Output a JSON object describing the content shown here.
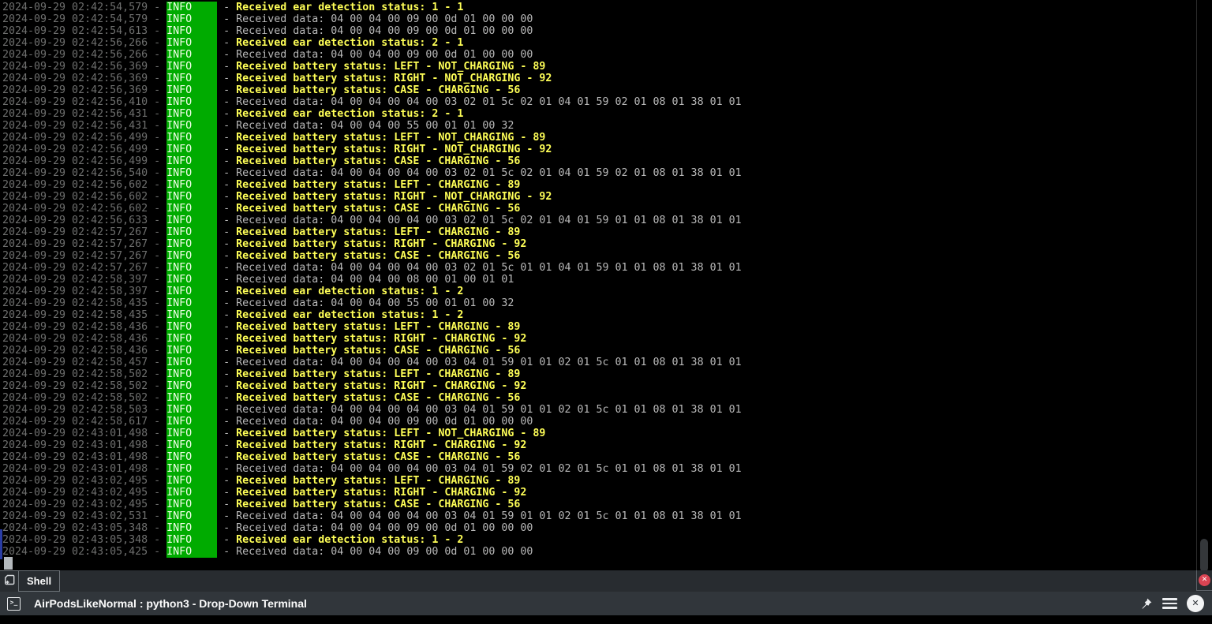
{
  "terminal": {
    "level_label": "INFO",
    "colors": {
      "badge_bg": "#00ab00",
      "badge_fg": "#f2ffe9",
      "timestamp": "#6e6f6e",
      "data_text": "#b9b9b9",
      "status_text": "#ffff57",
      "mark_bar": "#2a3da5",
      "cursor": "#b4b9bd",
      "background": "#000000"
    },
    "lines": [
      {
        "time": "2024-09-29 02:42:54,579",
        "level": "INFO",
        "kind": "status",
        "msg": "Received ear detection status: 1 - 1"
      },
      {
        "time": "2024-09-29 02:42:54,579",
        "level": "INFO",
        "kind": "data",
        "msg": "Received data: 04 00 04 00 09 00 0d 01 00 00 00"
      },
      {
        "time": "2024-09-29 02:42:54,613",
        "level": "INFO",
        "kind": "data",
        "msg": "Received data: 04 00 04 00 09 00 0d 01 00 00 00"
      },
      {
        "time": "2024-09-29 02:42:56,266",
        "level": "INFO",
        "kind": "status",
        "msg": "Received ear detection status: 2 - 1"
      },
      {
        "time": "2024-09-29 02:42:56,266",
        "level": "INFO",
        "kind": "data",
        "msg": "Received data: 04 00 04 00 09 00 0d 01 00 00 00"
      },
      {
        "time": "2024-09-29 02:42:56,369",
        "level": "INFO",
        "kind": "status",
        "msg": "Received battery status: LEFT - NOT_CHARGING - 89"
      },
      {
        "time": "2024-09-29 02:42:56,369",
        "level": "INFO",
        "kind": "status",
        "msg": "Received battery status: RIGHT - NOT_CHARGING - 92"
      },
      {
        "time": "2024-09-29 02:42:56,369",
        "level": "INFO",
        "kind": "status",
        "msg": "Received battery status: CASE - CHARGING - 56"
      },
      {
        "time": "2024-09-29 02:42:56,410",
        "level": "INFO",
        "kind": "data",
        "msg": "Received data: 04 00 04 00 04 00 03 02 01 5c 02 01 04 01 59 02 01 08 01 38 01 01"
      },
      {
        "time": "2024-09-29 02:42:56,431",
        "level": "INFO",
        "kind": "status",
        "msg": "Received ear detection status: 2 - 1"
      },
      {
        "time": "2024-09-29 02:42:56,431",
        "level": "INFO",
        "kind": "data",
        "msg": "Received data: 04 00 04 00 55 00 01 01 00 32"
      },
      {
        "time": "2024-09-29 02:42:56,499",
        "level": "INFO",
        "kind": "status",
        "msg": "Received battery status: LEFT - NOT_CHARGING - 89"
      },
      {
        "time": "2024-09-29 02:42:56,499",
        "level": "INFO",
        "kind": "status",
        "msg": "Received battery status: RIGHT - NOT_CHARGING - 92"
      },
      {
        "time": "2024-09-29 02:42:56,499",
        "level": "INFO",
        "kind": "status",
        "msg": "Received battery status: CASE - CHARGING - 56"
      },
      {
        "time": "2024-09-29 02:42:56,540",
        "level": "INFO",
        "kind": "data",
        "msg": "Received data: 04 00 04 00 04 00 03 02 01 5c 02 01 04 01 59 02 01 08 01 38 01 01"
      },
      {
        "time": "2024-09-29 02:42:56,602",
        "level": "INFO",
        "kind": "status",
        "msg": "Received battery status: LEFT - CHARGING - 89"
      },
      {
        "time": "2024-09-29 02:42:56,602",
        "level": "INFO",
        "kind": "status",
        "msg": "Received battery status: RIGHT - NOT_CHARGING - 92"
      },
      {
        "time": "2024-09-29 02:42:56,602",
        "level": "INFO",
        "kind": "status",
        "msg": "Received battery status: CASE - CHARGING - 56"
      },
      {
        "time": "2024-09-29 02:42:56,633",
        "level": "INFO",
        "kind": "data",
        "msg": "Received data: 04 00 04 00 04 00 03 02 01 5c 02 01 04 01 59 01 01 08 01 38 01 01"
      },
      {
        "time": "2024-09-29 02:42:57,267",
        "level": "INFO",
        "kind": "status",
        "msg": "Received battery status: LEFT - CHARGING - 89"
      },
      {
        "time": "2024-09-29 02:42:57,267",
        "level": "INFO",
        "kind": "status",
        "msg": "Received battery status: RIGHT - CHARGING - 92"
      },
      {
        "time": "2024-09-29 02:42:57,267",
        "level": "INFO",
        "kind": "status",
        "msg": "Received battery status: CASE - CHARGING - 56"
      },
      {
        "time": "2024-09-29 02:42:57,267",
        "level": "INFO",
        "kind": "data",
        "msg": "Received data: 04 00 04 00 04 00 03 02 01 5c 01 01 04 01 59 01 01 08 01 38 01 01"
      },
      {
        "time": "2024-09-29 02:42:58,397",
        "level": "INFO",
        "kind": "data",
        "msg": "Received data: 04 00 04 00 08 00 01 00 01 01"
      },
      {
        "time": "2024-09-29 02:42:58,397",
        "level": "INFO",
        "kind": "status",
        "msg": "Received ear detection status: 1 - 2"
      },
      {
        "time": "2024-09-29 02:42:58,435",
        "level": "INFO",
        "kind": "data",
        "msg": "Received data: 04 00 04 00 55 00 01 01 00 32"
      },
      {
        "time": "2024-09-29 02:42:58,435",
        "level": "INFO",
        "kind": "status",
        "msg": "Received ear detection status: 1 - 2"
      },
      {
        "time": "2024-09-29 02:42:58,436",
        "level": "INFO",
        "kind": "status",
        "msg": "Received battery status: LEFT - CHARGING - 89"
      },
      {
        "time": "2024-09-29 02:42:58,436",
        "level": "INFO",
        "kind": "status",
        "msg": "Received battery status: RIGHT - CHARGING - 92"
      },
      {
        "time": "2024-09-29 02:42:58,436",
        "level": "INFO",
        "kind": "status",
        "msg": "Received battery status: CASE - CHARGING - 56"
      },
      {
        "time": "2024-09-29 02:42:58,457",
        "level": "INFO",
        "kind": "data",
        "msg": "Received data: 04 00 04 00 04 00 03 04 01 59 01 01 02 01 5c 01 01 08 01 38 01 01"
      },
      {
        "time": "2024-09-29 02:42:58,502",
        "level": "INFO",
        "kind": "status",
        "msg": "Received battery status: LEFT - CHARGING - 89"
      },
      {
        "time": "2024-09-29 02:42:58,502",
        "level": "INFO",
        "kind": "status",
        "msg": "Received battery status: RIGHT - CHARGING - 92"
      },
      {
        "time": "2024-09-29 02:42:58,502",
        "level": "INFO",
        "kind": "status",
        "msg": "Received battery status: CASE - CHARGING - 56"
      },
      {
        "time": "2024-09-29 02:42:58,503",
        "level": "INFO",
        "kind": "data",
        "msg": "Received data: 04 00 04 00 04 00 03 04 01 59 01 01 02 01 5c 01 01 08 01 38 01 01"
      },
      {
        "time": "2024-09-29 02:42:58,617",
        "level": "INFO",
        "kind": "data",
        "msg": "Received data: 04 00 04 00 09 00 0d 01 00 00 00"
      },
      {
        "time": "2024-09-29 02:43:01,498",
        "level": "INFO",
        "kind": "status",
        "msg": "Received battery status: LEFT - NOT_CHARGING - 89"
      },
      {
        "time": "2024-09-29 02:43:01,498",
        "level": "INFO",
        "kind": "status",
        "msg": "Received battery status: RIGHT - CHARGING - 92"
      },
      {
        "time": "2024-09-29 02:43:01,498",
        "level": "INFO",
        "kind": "status",
        "msg": "Received battery status: CASE - CHARGING - 56"
      },
      {
        "time": "2024-09-29 02:43:01,498",
        "level": "INFO",
        "kind": "data",
        "msg": "Received data: 04 00 04 00 04 00 03 04 01 59 02 01 02 01 5c 01 01 08 01 38 01 01"
      },
      {
        "time": "2024-09-29 02:43:02,495",
        "level": "INFO",
        "kind": "status",
        "msg": "Received battery status: LEFT - CHARGING - 89"
      },
      {
        "time": "2024-09-29 02:43:02,495",
        "level": "INFO",
        "kind": "status",
        "msg": "Received battery status: RIGHT - CHARGING - 92"
      },
      {
        "time": "2024-09-29 02:43:02,495",
        "level": "INFO",
        "kind": "status",
        "msg": "Received battery status: CASE - CHARGING - 56"
      },
      {
        "time": "2024-09-29 02:43:02,531",
        "level": "INFO",
        "kind": "data",
        "msg": "Received data: 04 00 04 00 04 00 03 04 01 59 01 01 02 01 5c 01 01 08 01 38 01 01"
      },
      {
        "time": "2024-09-29 02:43:05,348",
        "level": "INFO",
        "kind": "data",
        "msg": "Received data: 04 00 04 00 09 00 0d 01 00 00 00"
      },
      {
        "time": "2024-09-29 02:43:05,348",
        "level": "INFO",
        "kind": "status",
        "msg": "Received ear detection status: 1 - 2"
      },
      {
        "time": "2024-09-29 02:43:05,425",
        "level": "INFO",
        "kind": "data",
        "msg": "Received data: 04 00 04 00 09 00 0d 01 00 00 00"
      }
    ]
  },
  "tab_bar": {
    "tabs": [
      {
        "label": "Shell",
        "active": true
      }
    ],
    "close_session_glyph": "✕"
  },
  "title_bar": {
    "title": "AirPodsLikeNormal : python3 - Drop-Down Terminal",
    "prompt_glyph": ">_",
    "close_glyph": "✕"
  },
  "accents": {
    "close_red": "#da4453",
    "tab_border": "#6d7378",
    "titlebar_bg": "#31363b",
    "tabbar_bg": "#282c30"
  }
}
